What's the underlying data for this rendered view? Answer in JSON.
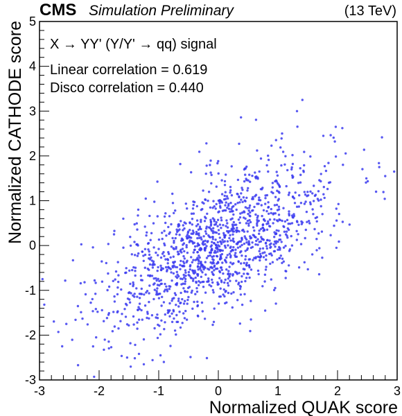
{
  "header": {
    "experiment": "CMS",
    "status": "Simulation Preliminary",
    "energy": "(13 TeV)"
  },
  "annotations": {
    "process": "X → YY' (Y/Y' → qq) signal",
    "linear": "Linear correlation = 0.619",
    "disco": "Disco correlation = 0.440"
  },
  "chart_data": {
    "type": "scatter",
    "title": "",
    "xlabel": "Normalized QUAK score",
    "ylabel": "Normalized CATHODE score",
    "xlim": [
      -3,
      3
    ],
    "ylim": [
      -3,
      5
    ],
    "xticks": [
      -3,
      -2,
      -1,
      0,
      1,
      2,
      3
    ],
    "yticks": [
      -3,
      -2,
      -1,
      0,
      1,
      2,
      3,
      4,
      5
    ],
    "grid": false,
    "marker_color": "#3b3bf0",
    "point_count": 1400,
    "linear_correlation": 0.619,
    "disco_correlation": 0.44,
    "highlight_points": [
      {
        "x": 1.41,
        "y": 3.25
      },
      {
        "x": 1.32,
        "y": 3.0
      },
      {
        "x": 0.38,
        "y": 2.86
      },
      {
        "x": 1.97,
        "y": 2.65
      },
      {
        "x": 2.08,
        "y": 2.62
      },
      {
        "x": 1.07,
        "y": 2.5
      },
      {
        "x": 1.06,
        "y": 2.39
      },
      {
        "x": -0.2,
        "y": 2.28
      },
      {
        "x": 2.7,
        "y": 1.75
      },
      {
        "x": 2.8,
        "y": 1.55
      },
      {
        "x": 2.95,
        "y": 1.65
      },
      {
        "x": -2.55,
        "y": -1.75
      },
      {
        "x": -2.62,
        "y": -2.25
      },
      {
        "x": -2.95,
        "y": -0.75
      },
      {
        "x": -2.92,
        "y": -1.32
      },
      {
        "x": -1.25,
        "y": -2.65
      },
      {
        "x": -0.97,
        "y": -2.45
      },
      {
        "x": -1.53,
        "y": -2.5
      },
      {
        "x": -2.05,
        "y": -2.05
      }
    ]
  }
}
